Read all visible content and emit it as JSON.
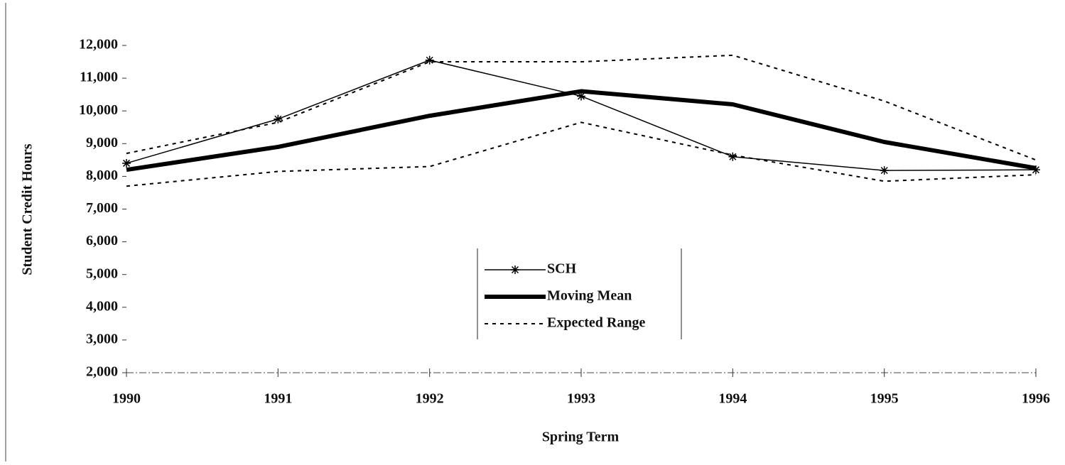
{
  "chart_data": {
    "type": "line",
    "x_label": "Spring Term",
    "y_label": "Student Credit Hours",
    "categories": [
      "1990",
      "1991",
      "1992",
      "1993",
      "1994",
      "1995",
      "1996"
    ],
    "series": [
      {
        "name": "SCH",
        "color": "#000000",
        "style": "star-marker",
        "values": [
          8400,
          9750,
          11550,
          10450,
          8600,
          8180,
          8200
        ]
      },
      {
        "name": "Moving Mean",
        "color": "#000000",
        "style": "thick",
        "values": [
          8200,
          8900,
          9850,
          10600,
          10200,
          9050,
          8250
        ]
      },
      {
        "name": "Expected Range",
        "color": "#000000",
        "style": "dashed",
        "values": [
          8700,
          9650,
          11500,
          11500,
          11700,
          10300,
          8500
        ]
      },
      {
        "color": "#000000",
        "style": "dashed",
        "values": [
          7700,
          8150,
          8300,
          9650,
          8650,
          7850,
          8050
        ]
      }
    ],
    "ylim": [
      2000,
      12000
    ],
    "yticks": [
      {
        "value": 2000,
        "label": "2,000"
      },
      {
        "value": 3000,
        "label": "3,000"
      },
      {
        "value": 4000,
        "label": "4,000"
      },
      {
        "value": 5000,
        "label": "5,000"
      },
      {
        "value": 6000,
        "label": "6,000"
      },
      {
        "value": 7000,
        "label": "7,000"
      },
      {
        "value": 8000,
        "label": "8,000"
      },
      {
        "value": 9000,
        "label": "9,000"
      },
      {
        "value": 10000,
        "label": "10,000"
      },
      {
        "value": 11000,
        "label": "11,000"
      },
      {
        "value": 12000,
        "label": "12,000"
      }
    ],
    "grid": false
  }
}
